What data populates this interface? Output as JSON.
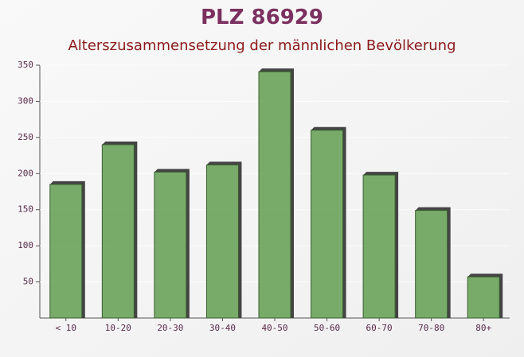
{
  "chart_data": {
    "type": "bar",
    "title": "PLZ 86929",
    "subtitle": "Alterszusammensetzung der männlichen Bevölkerung",
    "categories": [
      "< 10",
      "10-20",
      "20-30",
      "30-40",
      "40-50",
      "50-60",
      "60-70",
      "70-80",
      "80+"
    ],
    "values": [
      185,
      240,
      202,
      212,
      341,
      260,
      198,
      149,
      57
    ],
    "color": "#6aa35a",
    "ylim": [
      0,
      350
    ],
    "yticks": [
      50,
      100,
      150,
      200,
      250,
      300,
      350
    ]
  }
}
